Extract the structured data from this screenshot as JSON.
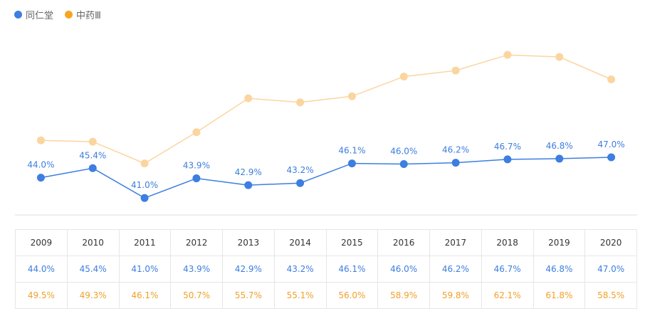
{
  "legend": [
    {
      "name": "同仁堂",
      "color": "#3d7ee0"
    },
    {
      "name": "中药Ⅲ",
      "color": "#f5a623"
    }
  ],
  "chart_data": {
    "type": "line",
    "categories": [
      "2009",
      "2010",
      "2011",
      "2012",
      "2013",
      "2014",
      "2015",
      "2016",
      "2017",
      "2018",
      "2019",
      "2020"
    ],
    "series": [
      {
        "name": "同仁堂",
        "color": "#3d7ee0",
        "values": [
          44.0,
          45.4,
          41.0,
          43.9,
          42.9,
          43.2,
          46.1,
          46.0,
          46.2,
          46.7,
          46.8,
          47.0
        ],
        "labels": [
          "44.0%",
          "45.4%",
          "41.0%",
          "43.9%",
          "42.9%",
          "43.2%",
          "46.1%",
          "46.0%",
          "46.2%",
          "46.7%",
          "46.8%",
          "47.0%"
        ]
      },
      {
        "name": "中药Ⅲ",
        "color": "#f5a623",
        "line_color": "#fbd5a0",
        "values": [
          49.5,
          49.3,
          46.1,
          50.7,
          55.7,
          55.1,
          56.0,
          58.9,
          59.8,
          62.1,
          61.8,
          58.5
        ],
        "labels": [
          "49.5%",
          "49.3%",
          "46.1%",
          "50.7%",
          "55.7%",
          "55.1%",
          "56.0%",
          "58.9%",
          "59.8%",
          "62.1%",
          "61.8%",
          "58.5%"
        ]
      }
    ],
    "ylim": [
      38.5,
      66
    ],
    "title": "",
    "xlabel": "",
    "ylabel": ""
  }
}
